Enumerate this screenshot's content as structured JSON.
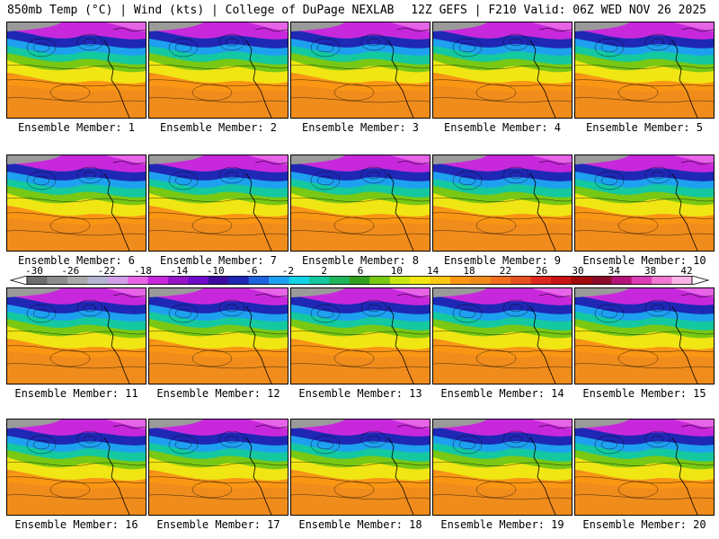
{
  "header": {
    "left": "850mb Temp (°C) | Wind (kts) | College of DuPage NEXLAB",
    "right": "12Z GEFS | F210 Valid: 06Z WED NOV 26 2025"
  },
  "members": [
    {
      "label": "Ensemble Member: 1"
    },
    {
      "label": "Ensemble Member: 2"
    },
    {
      "label": "Ensemble Member: 3"
    },
    {
      "label": "Ensemble Member: 4"
    },
    {
      "label": "Ensemble Member: 5"
    },
    {
      "label": "Ensemble Member: 6"
    },
    {
      "label": "Ensemble Member: 7"
    },
    {
      "label": "Ensemble Member: 8"
    },
    {
      "label": "Ensemble Member: 9"
    },
    {
      "label": "Ensemble Member: 10"
    },
    {
      "label": "Ensemble Member: 11"
    },
    {
      "label": "Ensemble Member: 12"
    },
    {
      "label": "Ensemble Member: 13"
    },
    {
      "label": "Ensemble Member: 14"
    },
    {
      "label": "Ensemble Member: 15"
    },
    {
      "label": "Ensemble Member: 16"
    },
    {
      "label": "Ensemble Member: 17"
    },
    {
      "label": "Ensemble Member: 18"
    },
    {
      "label": "Ensemble Member: 19"
    },
    {
      "label": "Ensemble Member: 20"
    }
  ],
  "colorbar": {
    "labels": [
      "-30",
      "-26",
      "-22",
      "-18",
      "-14",
      "-10",
      "-6",
      "-2",
      "2",
      "6",
      "10",
      "14",
      "18",
      "22",
      "26",
      "30",
      "34",
      "38",
      "42"
    ],
    "colors": [
      "#ffffff",
      "#6e6e6e",
      "#8c8c8c",
      "#a8a8a8",
      "#b4b4d2",
      "#d2a0e6",
      "#e664e6",
      "#c828dc",
      "#9614c8",
      "#6e0ac8",
      "#3c0aa0",
      "#1e28b4",
      "#1e64dc",
      "#1ea0f0",
      "#14d2e6",
      "#14c8a0",
      "#1eb45a",
      "#32a01e",
      "#78c814",
      "#c8e614",
      "#f0e614",
      "#fac814",
      "#fa9614",
      "#f08c1c",
      "#f06e1e",
      "#e6501e",
      "#dc281e",
      "#c81414",
      "#a00a0a",
      "#8c0a28",
      "#b41478",
      "#dc3cb4",
      "#f078d2",
      "#fab4e6",
      "#ffffff"
    ]
  }
}
